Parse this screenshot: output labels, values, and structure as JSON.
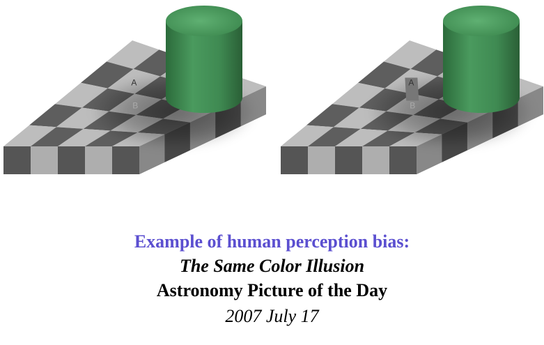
{
  "image": {
    "description_free": true,
    "left_panel": {
      "square_labels": [
        "A",
        "B"
      ],
      "connector_strip": false
    },
    "right_panel": {
      "square_labels": [
        "A",
        "B"
      ],
      "connector_strip": true
    },
    "colors": {
      "light_square": "#bdbdbd",
      "dark_square": "#5e5e5e",
      "cylinder_green": "#3f8a52",
      "caption_blue": "#5b4fd0"
    }
  },
  "caption": {
    "line1": "Example of human perception bias:",
    "line2": "The Same Color Illusion",
    "line3": "Astronomy Picture of the Day",
    "line4": "2007 July 17"
  }
}
